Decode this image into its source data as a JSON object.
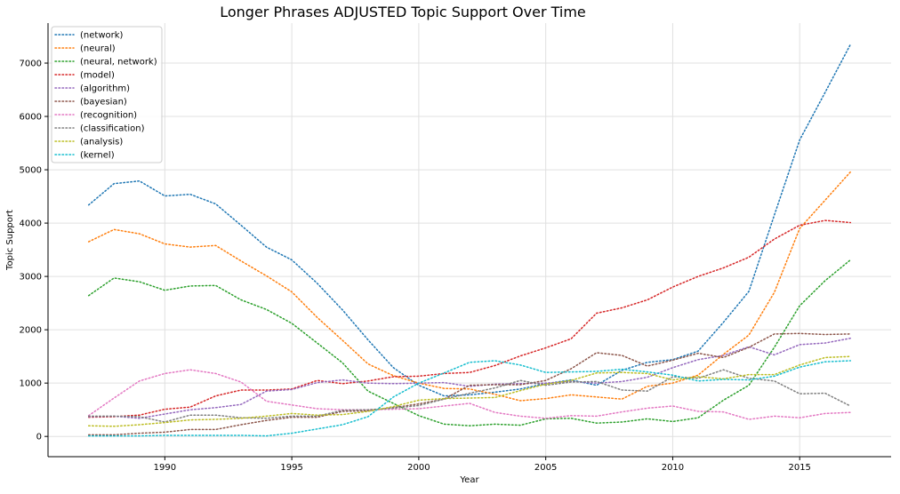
{
  "chart_data": {
    "type": "line",
    "title": "Longer Phrases ADJUSTED Topic Support Over Time",
    "xlabel": "Year",
    "ylabel": "Topic Support",
    "xlim": [
      1985.4,
      2018.6
    ],
    "ylim": [
      -380,
      7750
    ],
    "xticks": [
      1990,
      1995,
      2000,
      2005,
      2010,
      2015
    ],
    "yticks": [
      0,
      1000,
      2000,
      3000,
      4000,
      5000,
      6000,
      7000
    ],
    "grid": true,
    "line_style": "dotted",
    "legend_position": "top-left",
    "x": [
      1987,
      1988,
      1989,
      1990,
      1991,
      1992,
      1993,
      1994,
      1995,
      1996,
      1997,
      1998,
      1999,
      2000,
      2001,
      2002,
      2003,
      2004,
      2005,
      2006,
      2007,
      2008,
      2009,
      2010,
      2011,
      2012,
      2013,
      2014,
      2015,
      2016,
      2017
    ],
    "series": [
      {
        "name": "(network)",
        "color": "#1f77b4",
        "values": [
          4340,
          4740,
          4790,
          4510,
          4540,
          4360,
          3960,
          3550,
          3310,
          2870,
          2370,
          1810,
          1290,
          960,
          760,
          780,
          830,
          890,
          990,
          1060,
          960,
          1240,
          1390,
          1440,
          1600,
          2140,
          2720,
          4150,
          5560,
          6450,
          7350
        ]
      },
      {
        "name": "(neural)",
        "color": "#ff7f0e",
        "values": [
          3650,
          3880,
          3800,
          3610,
          3550,
          3580,
          3290,
          3010,
          2710,
          2230,
          1800,
          1360,
          1140,
          1000,
          900,
          890,
          790,
          670,
          710,
          780,
          740,
          700,
          940,
          1000,
          1150,
          1540,
          1900,
          2700,
          3900,
          4430,
          4960
        ]
      },
      {
        "name": "(neural, network)",
        "color": "#2ca02c",
        "values": [
          2640,
          2970,
          2900,
          2740,
          2820,
          2830,
          2560,
          2380,
          2120,
          1750,
          1380,
          850,
          620,
          390,
          230,
          200,
          230,
          210,
          330,
          340,
          250,
          270,
          330,
          280,
          350,
          680,
          960,
          1670,
          2450,
          2920,
          3310
        ]
      },
      {
        "name": "(model)",
        "color": "#d62728",
        "values": [
          360,
          370,
          400,
          510,
          550,
          760,
          870,
          870,
          890,
          1050,
          990,
          1040,
          1120,
          1130,
          1180,
          1200,
          1330,
          1510,
          1660,
          1830,
          2310,
          2410,
          2560,
          2800,
          3000,
          3160,
          3360,
          3700,
          3960,
          4050,
          4010
        ]
      },
      {
        "name": "(algorithm)",
        "color": "#9467bd",
        "values": [
          370,
          380,
          340,
          420,
          500,
          540,
          600,
          850,
          880,
          1010,
          1060,
          1000,
          990,
          1000,
          1010,
          940,
          980,
          990,
          1000,
          1030,
          1000,
          1030,
          1110,
          1290,
          1440,
          1520,
          1680,
          1530,
          1720,
          1750,
          1840
        ]
      },
      {
        "name": "(bayesian)",
        "color": "#8c564b",
        "values": [
          30,
          30,
          60,
          80,
          130,
          130,
          220,
          300,
          360,
          360,
          470,
          480,
          540,
          610,
          700,
          960,
          970,
          970,
          1050,
          1270,
          1570,
          1520,
          1320,
          1430,
          1560,
          1480,
          1670,
          1920,
          1930,
          1910,
          1920
        ]
      },
      {
        "name": "(recognition)",
        "color": "#e377c2",
        "values": [
          390,
          720,
          1040,
          1180,
          1250,
          1180,
          1020,
          660,
          590,
          520,
          500,
          500,
          510,
          520,
          570,
          620,
          450,
          380,
          340,
          390,
          380,
          460,
          530,
          570,
          470,
          460,
          320,
          380,
          350,
          430,
          450
        ]
      },
      {
        "name": "(classification)",
        "color": "#7f7f7f",
        "values": [
          380,
          380,
          370,
          270,
          400,
          400,
          350,
          340,
          380,
          380,
          490,
          500,
          530,
          580,
          700,
          810,
          910,
          1050,
          960,
          1020,
          1030,
          870,
          850,
          1120,
          1090,
          1250,
          1090,
          1040,
          800,
          810,
          570
        ]
      },
      {
        "name": "(analysis)",
        "color": "#bcbd22",
        "values": [
          200,
          190,
          220,
          260,
          310,
          320,
          340,
          380,
          430,
          400,
          410,
          470,
          560,
          680,
          710,
          720,
          730,
          860,
          980,
          1050,
          1190,
          1200,
          1180,
          1060,
          1120,
          1080,
          1160,
          1160,
          1340,
          1480,
          1500
        ]
      },
      {
        "name": "(kernel)",
        "color": "#17becf",
        "values": [
          10,
          10,
          10,
          20,
          20,
          20,
          20,
          10,
          60,
          140,
          220,
          370,
          740,
          1000,
          1190,
          1390,
          1420,
          1340,
          1200,
          1210,
          1220,
          1260,
          1210,
          1150,
          1040,
          1070,
          1060,
          1130,
          1300,
          1400,
          1420
        ]
      }
    ]
  }
}
